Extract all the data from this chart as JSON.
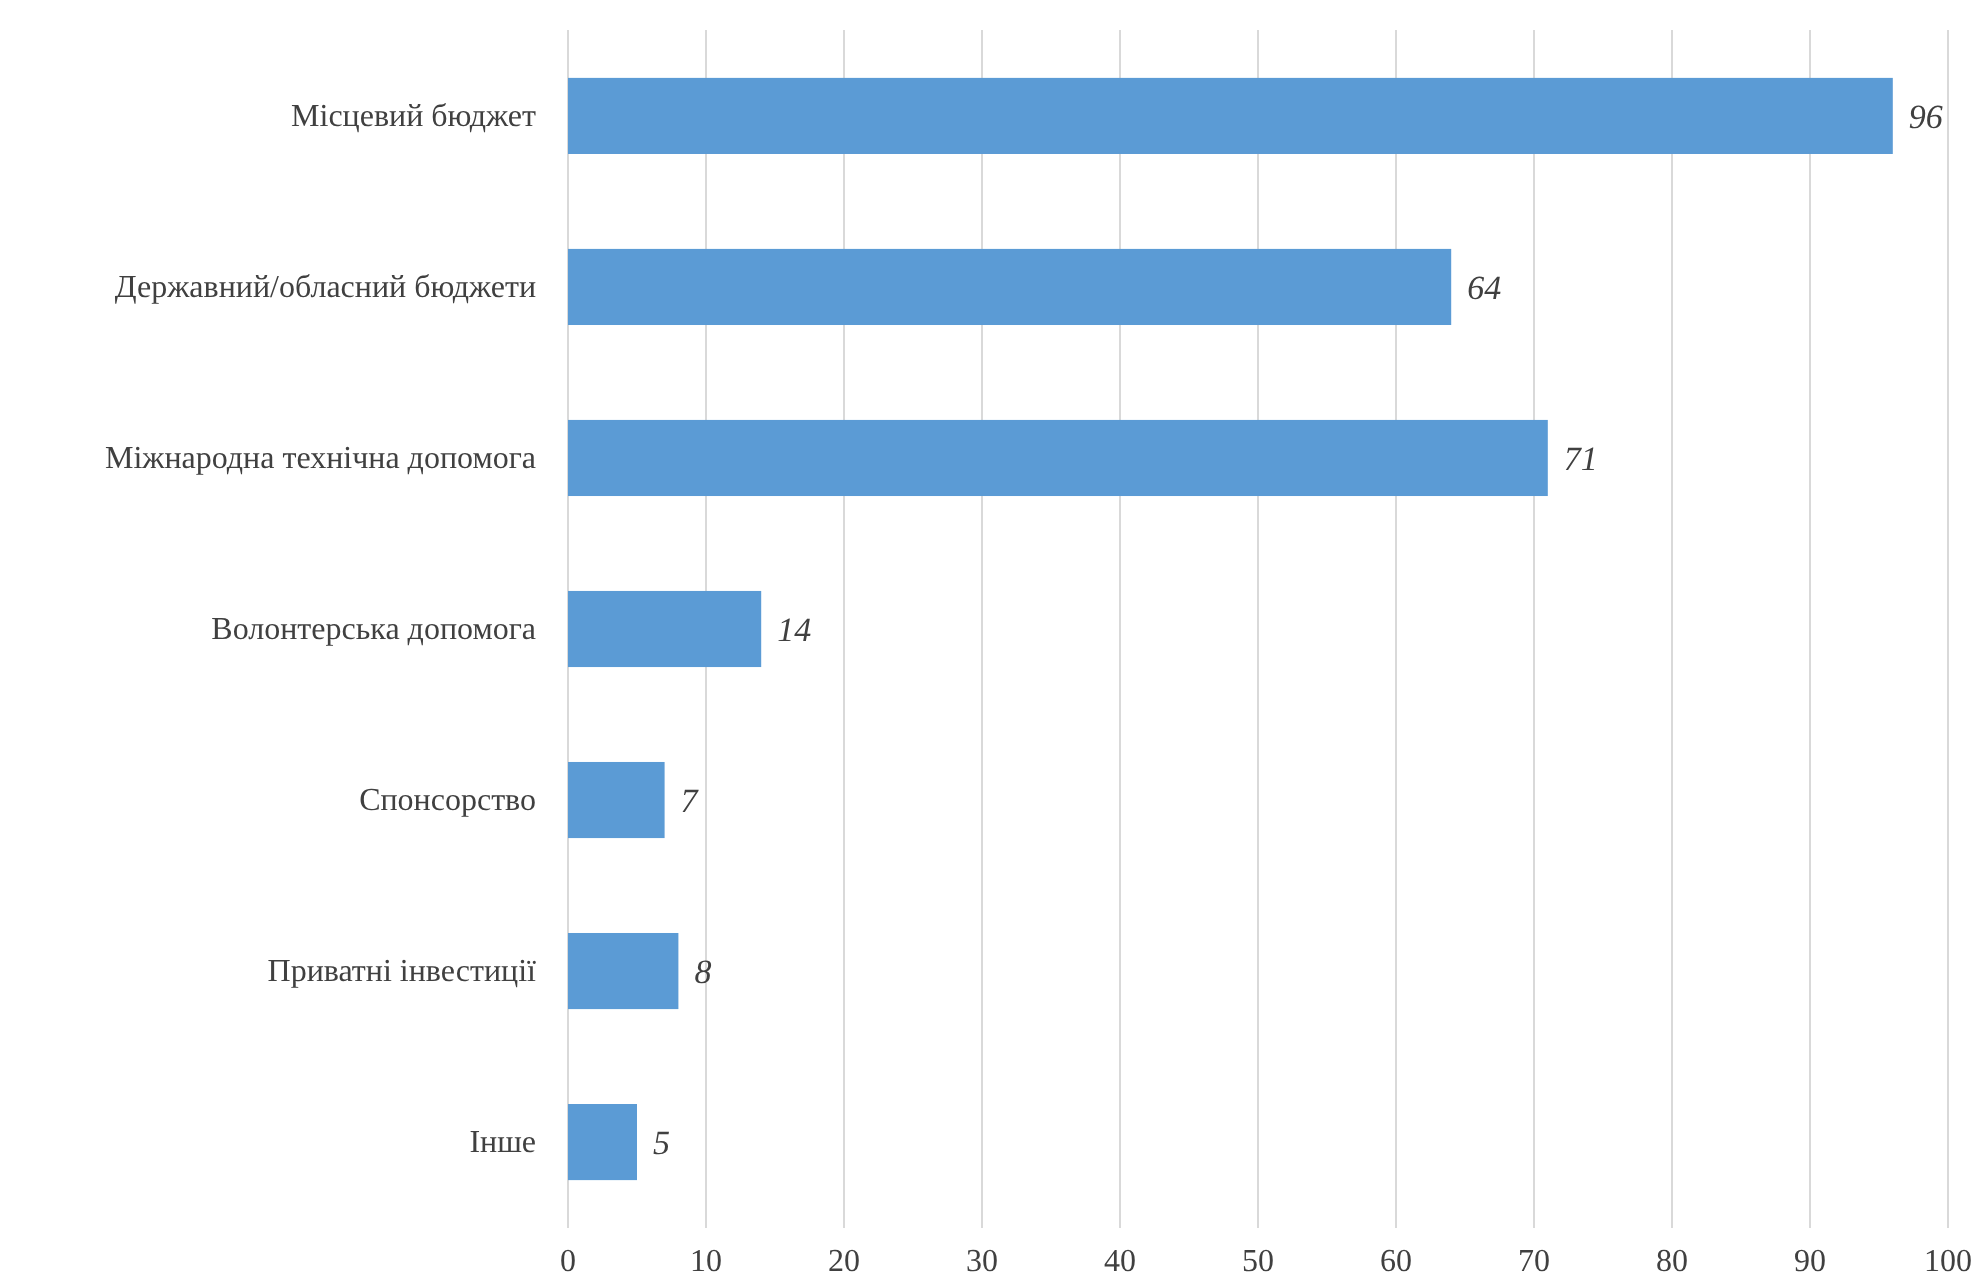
{
  "chart_data": {
    "type": "bar",
    "orientation": "horizontal",
    "categories": [
      "Місцевий бюджет",
      "Державний/обласний бюджети",
      "Міжнародна технічна допомога",
      "Волонтерська допомога",
      "Спонсорство",
      "Приватні інвестиції",
      "Інше"
    ],
    "values": [
      96,
      64,
      71,
      14,
      7,
      8,
      5
    ],
    "color": "#5b9bd5",
    "xlim": [
      0,
      100
    ],
    "xticks": [
      0,
      10,
      20,
      30,
      40,
      50,
      60,
      70,
      80,
      90,
      100
    ],
    "grid": "x",
    "data_labels": true
  }
}
